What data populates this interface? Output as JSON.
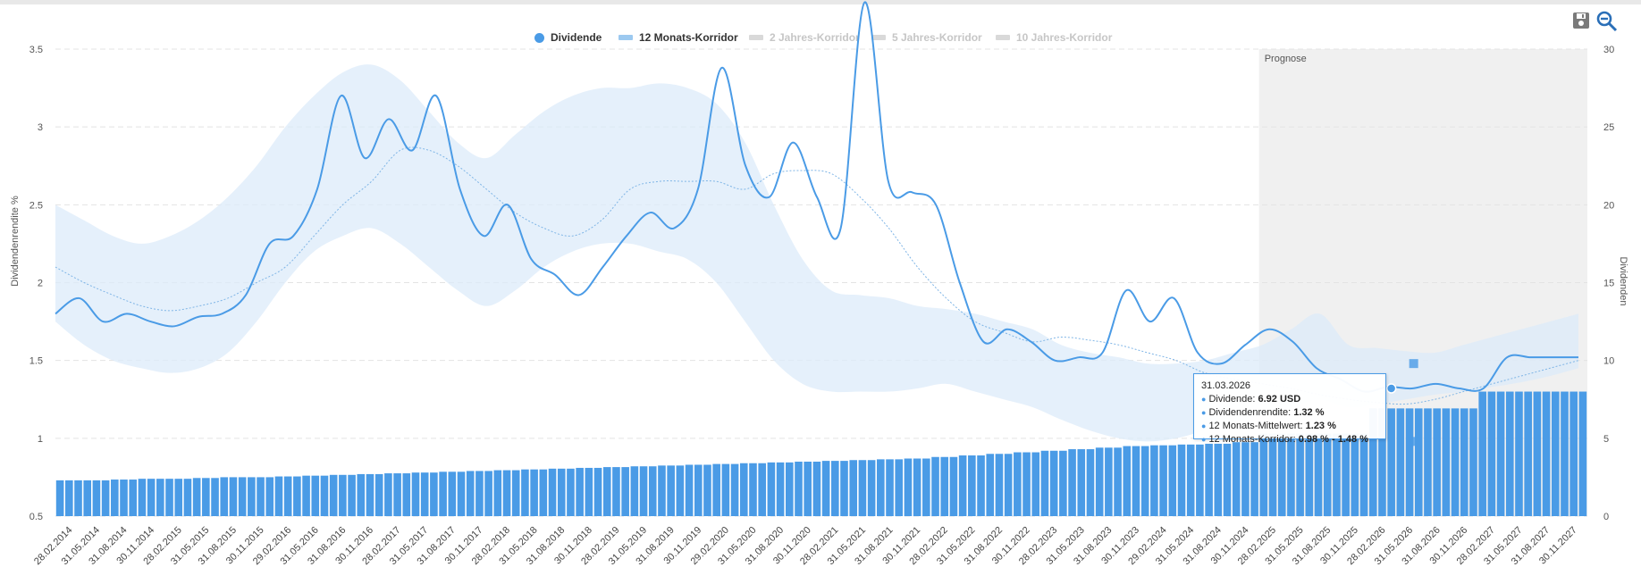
{
  "legend": {
    "items": [
      {
        "label": "Dividende",
        "active": true
      },
      {
        "label": "12 Monats-Korridor",
        "active": true
      },
      {
        "label": "2 Jahres-Korridor",
        "active": false
      },
      {
        "label": "5 Jahres-Korridor",
        "active": false
      },
      {
        "label": "10 Jahres-Korridor",
        "active": false
      }
    ]
  },
  "toolbar": {
    "save_icon": "floppy-disk-icon",
    "zoom_icon": "zoom-out-icon"
  },
  "tooltip": {
    "date": "31.03.2026",
    "rows": [
      {
        "label": "Dividende: ",
        "value": "6.92 USD"
      },
      {
        "label": "Dividendenrendite: ",
        "value": "1.32 %"
      },
      {
        "label": "12 Monats-Mittelwert: ",
        "value": "1.23 %"
      },
      {
        "label": "12 Monats-Korridor: ",
        "value": "0.98 % - 1.48 %"
      }
    ]
  },
  "colors": {
    "accent": "#4a9be6",
    "band": "#e4f0fb",
    "forecast": "#f0f0f0"
  },
  "chart_data": {
    "type": "bar+line",
    "title": "",
    "forecast_label": "Prognose",
    "forecast_start": "28.02.2025",
    "left_axis": {
      "label": "Dividendenrendite %",
      "min": 0.5,
      "max": 3.5,
      "ticks": [
        "0.5",
        "1",
        "1.5",
        "2",
        "2.5",
        "3",
        "3.5"
      ]
    },
    "right_axis": {
      "label": "Dividenden",
      "min": 0,
      "max": 30,
      "ticks": [
        "0",
        "5",
        "10",
        "15",
        "20",
        "25",
        "30"
      ]
    },
    "x_labels": [
      "28.02.2014",
      "31.05.2014",
      "31.08.2014",
      "30.11.2014",
      "28.02.2015",
      "31.05.2015",
      "31.08.2015",
      "30.11.2015",
      "29.02.2016",
      "31.05.2016",
      "31.08.2016",
      "30.11.2016",
      "28.02.2017",
      "31.05.2017",
      "31.08.2017",
      "30.11.2017",
      "28.02.2018",
      "31.05.2018",
      "31.08.2018",
      "30.11.2018",
      "28.02.2019",
      "31.05.2019",
      "31.08.2019",
      "30.11.2019",
      "29.02.2020",
      "31.05.2020",
      "31.08.2020",
      "30.11.2020",
      "28.02.2021",
      "31.05.2021",
      "31.08.2021",
      "30.11.2021",
      "28.02.2022",
      "31.05.2022",
      "31.08.2022",
      "30.11.2022",
      "28.02.2023",
      "31.05.2023",
      "31.08.2023",
      "30.11.2023",
      "29.02.2024",
      "31.05.2024",
      "31.08.2024",
      "30.11.2024",
      "28.02.2025",
      "31.05.2025",
      "31.08.2025",
      "30.11.2025",
      "28.02.2026",
      "31.05.2026",
      "31.08.2026",
      "30.11.2026",
      "28.02.2027",
      "31.05.2027",
      "31.08.2027",
      "30.11.2027"
    ],
    "dividend_quarterly": [
      2.3,
      2.3,
      2.35,
      2.4,
      2.4,
      2.45,
      2.5,
      2.5,
      2.55,
      2.6,
      2.65,
      2.7,
      2.75,
      2.8,
      2.85,
      2.9,
      2.95,
      3.0,
      3.05,
      3.1,
      3.15,
      3.2,
      3.25,
      3.3,
      3.35,
      3.4,
      3.45,
      3.5,
      3.55,
      3.6,
      3.65,
      3.7,
      3.8,
      3.9,
      4.0,
      4.1,
      4.2,
      4.3,
      4.4,
      4.5,
      4.55,
      4.6,
      4.65,
      4.75,
      5.3,
      5.3,
      5.3,
      5.3,
      6.92,
      6.92,
      6.92,
      6.92,
      8.0,
      8.0,
      8.0,
      8.0
    ],
    "yield_series": [
      1.8,
      1.9,
      1.75,
      1.8,
      1.75,
      1.72,
      1.78,
      1.8,
      1.92,
      2.25,
      2.3,
      2.6,
      3.2,
      2.8,
      3.05,
      2.85,
      3.2,
      2.6,
      2.3,
      2.5,
      2.15,
      2.05,
      1.92,
      2.1,
      2.3,
      2.45,
      2.35,
      2.6,
      3.38,
      2.75,
      2.55,
      2.9,
      2.55,
      2.35,
      3.8,
      2.65,
      2.58,
      2.5,
      2.0,
      1.62,
      1.7,
      1.62,
      1.5,
      1.52,
      1.55,
      1.95,
      1.75,
      1.9,
      1.55,
      1.48,
      1.6,
      1.7,
      1.62,
      1.45,
      1.38,
      1.3,
      1.33,
      1.32,
      1.35,
      1.32,
      1.32,
      1.52,
      1.52,
      1.52,
      1.52
    ],
    "yield_corridor_mid": [
      2.1,
      2.0,
      1.92,
      1.85,
      1.82,
      1.85,
      1.9,
      2.0,
      2.1,
      2.3,
      2.5,
      2.65,
      2.85,
      2.85,
      2.75,
      2.6,
      2.45,
      2.35,
      2.3,
      2.4,
      2.6,
      2.65,
      2.65,
      2.65,
      2.6,
      2.7,
      2.72,
      2.7,
      2.55,
      2.35,
      2.1,
      1.9,
      1.75,
      1.68,
      1.62,
      1.65,
      1.63,
      1.6,
      1.55,
      1.5,
      1.42,
      1.38,
      1.35,
      1.32,
      1.28,
      1.25,
      1.23,
      1.22,
      1.25,
      1.3,
      1.35,
      1.4,
      1.45,
      1.5
    ],
    "yield_corridor_upper": [
      2.5,
      2.4,
      2.3,
      2.25,
      2.3,
      2.4,
      2.55,
      2.75,
      3.0,
      3.2,
      3.35,
      3.4,
      3.3,
      3.1,
      2.9,
      2.8,
      2.95,
      3.1,
      3.2,
      3.25,
      3.25,
      3.28,
      3.25,
      3.15,
      2.9,
      2.5,
      2.15,
      1.95,
      1.92,
      1.9,
      1.85,
      1.83,
      1.8,
      1.75,
      1.7,
      1.6,
      1.55,
      1.52,
      1.48,
      1.48,
      1.5,
      1.55,
      1.6,
      1.7,
      1.8
    ],
    "yield_corridor_lower": [
      1.75,
      1.6,
      1.5,
      1.45,
      1.42,
      1.45,
      1.55,
      1.75,
      2.0,
      2.2,
      2.3,
      2.35,
      2.25,
      2.1,
      1.95,
      1.85,
      1.95,
      2.1,
      2.2,
      2.25,
      2.25,
      2.2,
      2.15,
      2.0,
      1.75,
      1.5,
      1.35,
      1.3,
      1.3,
      1.3,
      1.32,
      1.35,
      1.3,
      1.25,
      1.2,
      1.12,
      1.05,
      1.0,
      0.98,
      1.0,
      1.05,
      1.1,
      1.15,
      1.2,
      1.25
    ]
  }
}
